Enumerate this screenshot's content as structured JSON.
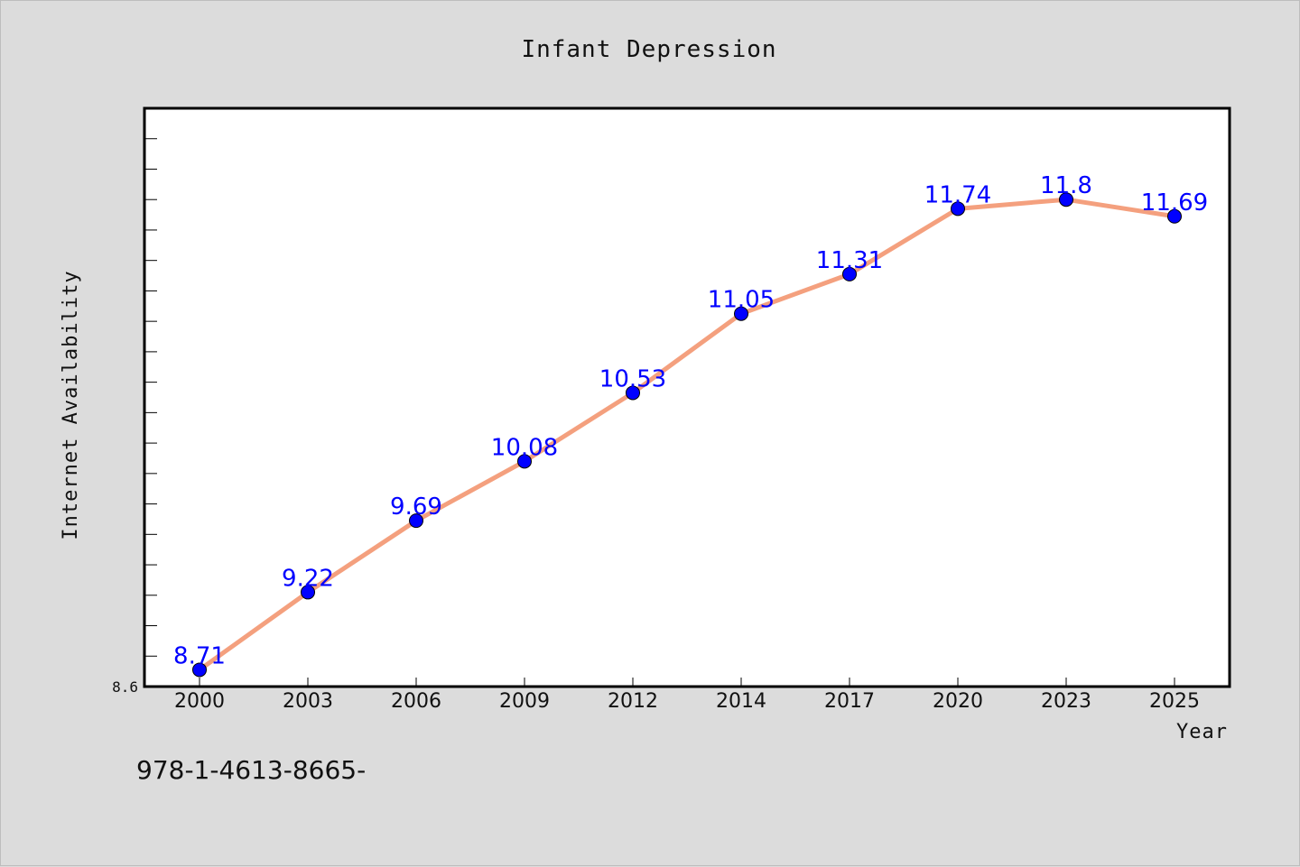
{
  "chart_data": {
    "type": "line",
    "title": "Infant Depression",
    "xlabel": "Year",
    "ylabel": "Internet Availability",
    "categories": [
      "2000",
      "2003",
      "2006",
      "2009",
      "2012",
      "2014",
      "2017",
      "2020",
      "2023",
      "2025"
    ],
    "series": [
      {
        "values": [
          8.71,
          9.22,
          9.69,
          10.08,
          10.53,
          11.05,
          11.31,
          11.74,
          11.8,
          11.69
        ],
        "line_color": "#f4a07e",
        "marker_color": "#0000ff"
      }
    ],
    "ylim": [
      8.6,
      12.4
    ],
    "ytick_min_label": "8.6",
    "grid": false,
    "legend": "none"
  },
  "footer": {
    "text": "978-1-4613-8665-"
  }
}
